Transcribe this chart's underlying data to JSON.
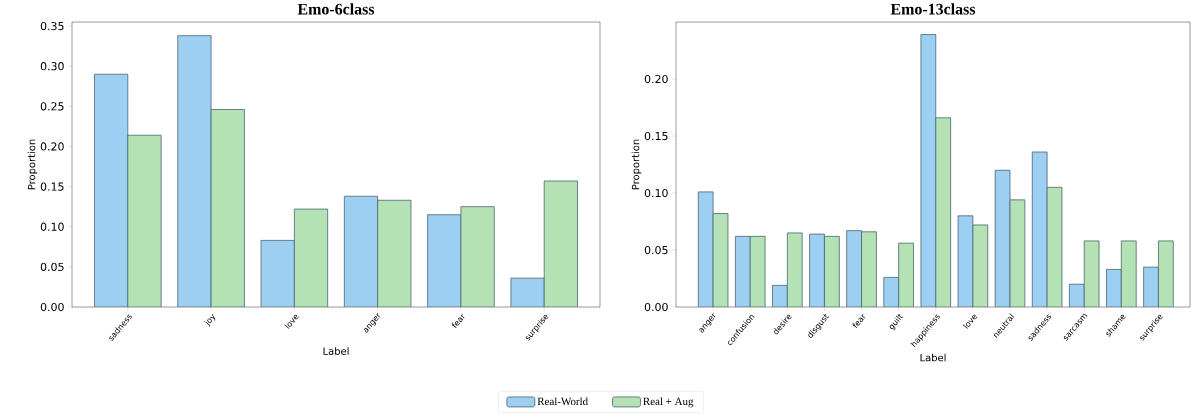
{
  "chart_data": [
    {
      "type": "bar",
      "title": "Emo-6class",
      "xlabel": "Label",
      "ylabel": "Proportion",
      "categories": [
        "sadness",
        "joy",
        "love",
        "anger",
        "fear",
        "surprise"
      ],
      "series": [
        {
          "color": "#9ccff2",
          "values": [
            0.29,
            0.338,
            0.083,
            0.138,
            0.115,
            0.036
          ]
        },
        {
          "color": "#b4e2b4",
          "values": [
            0.214,
            0.246,
            0.122,
            0.133,
            0.125,
            0.157
          ]
        }
      ],
      "ylim": [
        0,
        0.355
      ],
      "yticks": [
        {
          "value": 0,
          "label": "0.00"
        },
        {
          "value": 0.05,
          "label": "0.05"
        },
        {
          "value": 0.1,
          "label": "0.10"
        },
        {
          "value": 0.15,
          "label": "0.15"
        },
        {
          "value": 0.2,
          "label": "0.20"
        },
        {
          "value": 0.25,
          "label": "0.25"
        },
        {
          "value": 0.3,
          "label": "0.30"
        },
        {
          "value": 0.35,
          "label": "0.35"
        }
      ]
    },
    {
      "type": "bar",
      "title": "Emo-13class",
      "xlabel": "Label",
      "ylabel": "Proportion",
      "categories": [
        "anger",
        "confusion",
        "desire",
        "disgust",
        "fear",
        "guilt",
        "happiness",
        "love",
        "neutral",
        "sadness",
        "sarcasm",
        "shame",
        "surprise"
      ],
      "series": [
        {
          "name": "Real-World",
          "color": "#9ccff2",
          "values": [
            0.101,
            0.062,
            0.019,
            0.064,
            0.067,
            0.026,
            0.239,
            0.08,
            0.12,
            0.136,
            0.02,
            0.033,
            0.035
          ]
        },
        {
          "name": "Real + Aug",
          "color": "#b4e2b4",
          "values": [
            0.082,
            0.062,
            0.065,
            0.062,
            0.066,
            0.056,
            0.166,
            0.072,
            0.094,
            0.105,
            0.058,
            0.058,
            0.058
          ]
        }
      ],
      "ylim": [
        0,
        0.25
      ],
      "yticks": [
        {
          "value": 0,
          "label": "0.00"
        },
        {
          "value": 0.05,
          "label": "0.05"
        },
        {
          "value": 0.1,
          "label": "0.10"
        },
        {
          "value": 0.15,
          "label": "0.15"
        },
        {
          "value": 0.2,
          "label": "0.20"
        }
      ],
      "legend": "bottom"
    }
  ]
}
